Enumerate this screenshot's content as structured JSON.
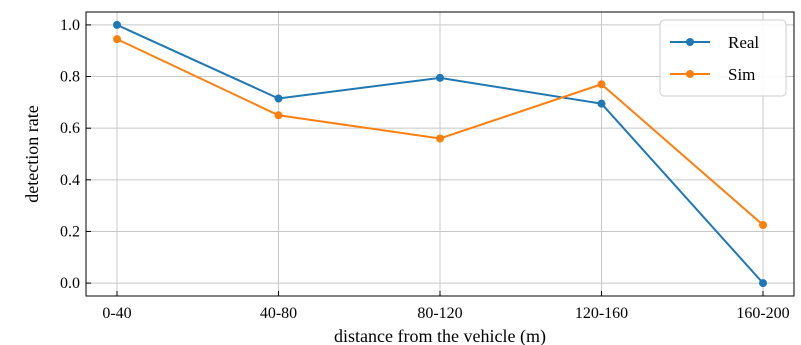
{
  "chart_data": {
    "type": "line",
    "title": "",
    "xlabel": "distance from the vehicle (m)",
    "ylabel": "detection rate",
    "categories": [
      "0-40",
      "40-80",
      "80-120",
      "120-160",
      "160-200"
    ],
    "ylim": [
      -0.05,
      1.05
    ],
    "yticks": [
      0.0,
      0.2,
      0.4,
      0.6,
      0.8,
      1.0
    ],
    "ytick_labels": [
      "0.0",
      "0.2",
      "0.4",
      "0.6",
      "0.8",
      "1.0"
    ],
    "grid": true,
    "legend_position": "top-right",
    "series": [
      {
        "name": "Real",
        "color": "#1f77b4",
        "values": [
          1.0,
          0.715,
          0.795,
          0.695,
          0.0
        ]
      },
      {
        "name": "Sim",
        "color": "#ff7f0e",
        "values": [
          0.945,
          0.65,
          0.56,
          0.77,
          0.225
        ]
      }
    ]
  }
}
